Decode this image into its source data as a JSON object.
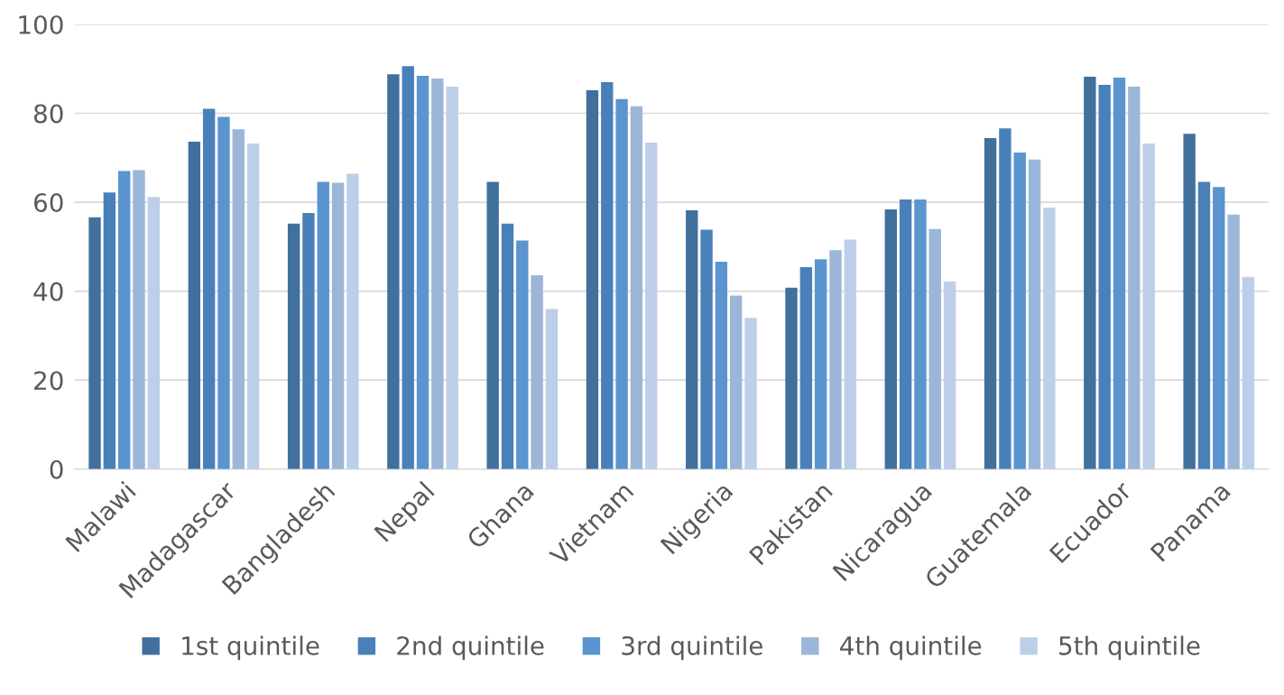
{
  "chart_data": {
    "type": "bar",
    "categories": [
      "Malawi",
      "Madagascar",
      "Bangladesh",
      "Nepal",
      "Ghana",
      "Vietnam",
      "Nigeria",
      "Pakistan",
      "Nicaragua",
      "Guatemala",
      "Ecuador",
      "Panama"
    ],
    "series": [
      {
        "name": "1st quintile",
        "color": "#41709c",
        "values": [
          56.6,
          73.6,
          55.2,
          88.8,
          64.6,
          85.2,
          58.2,
          40.8,
          58.4,
          74.4,
          88.2,
          75.4
        ]
      },
      {
        "name": "2nd quintile",
        "color": "#4a80b9",
        "values": [
          62.2,
          81.0,
          57.6,
          90.6,
          55.2,
          87.0,
          53.8,
          45.4,
          60.6,
          76.6,
          86.4,
          64.6
        ]
      },
      {
        "name": "3rd quintile",
        "color": "#5b94ce",
        "values": [
          67.0,
          79.2,
          64.6,
          88.4,
          51.4,
          83.2,
          46.6,
          47.2,
          60.6,
          71.2,
          88.0,
          63.4
        ]
      },
      {
        "name": "4th quintile",
        "color": "#9bb6d9",
        "values": [
          67.2,
          76.4,
          64.4,
          87.8,
          43.6,
          81.6,
          39.0,
          49.2,
          54.0,
          69.6,
          86.0,
          57.2
        ]
      },
      {
        "name": "5th quintile",
        "color": "#bdcfe8",
        "values": [
          61.2,
          73.2,
          66.4,
          86.0,
          36.0,
          73.4,
          34.0,
          51.6,
          42.2,
          58.8,
          73.2,
          43.2
        ]
      }
    ],
    "ylim": [
      0,
      100
    ],
    "yticks": [
      0,
      20,
      40,
      60,
      80,
      100
    ],
    "grid": "y",
    "legend": "bottom"
  }
}
